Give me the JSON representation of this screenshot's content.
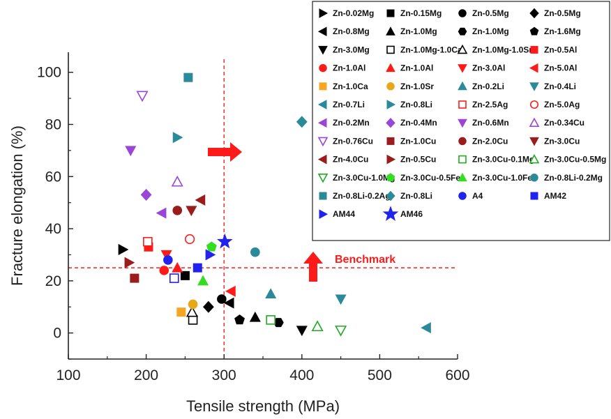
{
  "chart_data": {
    "type": "scatter",
    "title": "",
    "xlabel": "Tensile strength (MPa)",
    "ylabel": "Fracture elongation (%)",
    "xlim": [
      100,
      600
    ],
    "ylim": [
      -10,
      105
    ],
    "xticks": [
      100,
      200,
      300,
      400,
      500,
      600
    ],
    "yticks": [
      0,
      20,
      40,
      60,
      80,
      100
    ],
    "grid": false,
    "legend_position": "top-right",
    "benchmark": {
      "x": 300,
      "y": 25,
      "label": "Benchmark",
      "color": "#ff1a1a"
    },
    "series": [
      {
        "name": "Zn-0.02Mg",
        "marker": "tri-right",
        "color": "#000000",
        "fill": true,
        "points": [
          [
            170,
            32
          ]
        ]
      },
      {
        "name": "Zn-0.15Mg",
        "marker": "square",
        "color": "#000000",
        "fill": true,
        "points": [
          [
            250,
            22
          ]
        ]
      },
      {
        "name": "Zn-0.5Mg",
        "marker": "circle",
        "color": "#000000",
        "fill": true,
        "points": [
          [
            297,
            13
          ]
        ]
      },
      {
        "name": "Zn-0.5Mg",
        "marker": "diamond",
        "color": "#000000",
        "fill": true,
        "points": [
          [
            280,
            10
          ]
        ]
      },
      {
        "name": "Zn-0.8Mg",
        "marker": "tri-left",
        "color": "#000000",
        "fill": true,
        "points": [
          [
            307,
            11.5
          ]
        ]
      },
      {
        "name": "Zn-1.0Mg",
        "marker": "tri-up",
        "color": "#000000",
        "fill": true,
        "points": [
          [
            340,
            6
          ]
        ]
      },
      {
        "name": "Zn-1.0Mg",
        "marker": "hexagon",
        "color": "#000000",
        "fill": true,
        "points": [
          [
            370,
            4
          ]
        ]
      },
      {
        "name": "Zn-1.6Mg",
        "marker": "pentagon",
        "color": "#000000",
        "fill": true,
        "points": [
          [
            320,
            5
          ]
        ]
      },
      {
        "name": "Zn-3.0Mg",
        "marker": "tri-down",
        "color": "#000000",
        "fill": true,
        "points": [
          [
            400,
            1
          ]
        ]
      },
      {
        "name": "Zn-1.0Mg-1.0Ca",
        "marker": "square",
        "color": "#000000",
        "fill": false,
        "points": [
          [
            260,
            5
          ]
        ]
      },
      {
        "name": "Zn-1.0Mg-1.0Sr",
        "marker": "tri-up",
        "color": "#000000",
        "fill": false,
        "points": [
          [
            259,
            8
          ]
        ]
      },
      {
        "name": "Zn-0.5Al",
        "marker": "square",
        "color": "#ff1a1a",
        "fill": true,
        "points": [
          [
            203,
            33
          ]
        ]
      },
      {
        "name": "Zn-1.0Al",
        "marker": "circle",
        "color": "#ff1a1a",
        "fill": true,
        "points": [
          [
            223,
            24
          ]
        ]
      },
      {
        "name": "Zn-1.0Al",
        "marker": "tri-up",
        "color": "#ff1a1a",
        "fill": true,
        "points": [
          [
            240,
            25
          ]
        ]
      },
      {
        "name": "Zn-3.0Al",
        "marker": "tri-down",
        "color": "#ff1a1a",
        "fill": true,
        "points": [
          [
            226,
            30
          ]
        ]
      },
      {
        "name": "Zn-5.0Al",
        "marker": "tri-left",
        "color": "#ff1a1a",
        "fill": true,
        "points": [
          [
            309,
            16
          ]
        ]
      },
      {
        "name": "Zn-1.0Ca",
        "marker": "square",
        "color": "#f5a623",
        "fill": true,
        "points": [
          [
            245,
            8
          ]
        ]
      },
      {
        "name": "Zn-1.0Sr",
        "marker": "circle",
        "color": "#e6a817",
        "fill": true,
        "points": [
          [
            260,
            11
          ]
        ]
      },
      {
        "name": "Zn-0.2Li",
        "marker": "tri-up",
        "color": "#2a8a9a",
        "fill": true,
        "points": [
          [
            360,
            15
          ]
        ]
      },
      {
        "name": "Zn-0.4Li",
        "marker": "tri-down",
        "color": "#2a8a9a",
        "fill": true,
        "points": [
          [
            450,
            13
          ]
        ]
      },
      {
        "name": "Zn-0.7Li",
        "marker": "tri-left",
        "color": "#2a8a9a",
        "fill": true,
        "points": [
          [
            560,
            2
          ]
        ]
      },
      {
        "name": "Zn-0.8Li",
        "marker": "tri-right",
        "color": "#2a8a9a",
        "fill": true,
        "points": [
          [
            240,
            75
          ]
        ]
      },
      {
        "name": "Zn-2.5Ag",
        "marker": "square",
        "color": "#ff1a1a",
        "fill": false,
        "points": [
          [
            202,
            35
          ]
        ]
      },
      {
        "name": "Zn-5.0Ag",
        "marker": "circle",
        "color": "#ff1a1a",
        "fill": false,
        "points": [
          [
            256,
            36
          ]
        ]
      },
      {
        "name": "Zn-0.2Mn",
        "marker": "tri-left",
        "color": "#9b45d6",
        "fill": true,
        "points": [
          [
            220,
            46
          ]
        ]
      },
      {
        "name": "Zn-0.4Mn",
        "marker": "diamond",
        "color": "#9b45d6",
        "fill": true,
        "points": [
          [
            200,
            53
          ]
        ]
      },
      {
        "name": "Zn-0.6Mn",
        "marker": "tri-down",
        "color": "#9b45d6",
        "fill": true,
        "points": [
          [
            180,
            70
          ]
        ]
      },
      {
        "name": "Zn-0.34Cu",
        "marker": "tri-up",
        "color": "#9b45d6",
        "fill": false,
        "points": [
          [
            240,
            58
          ]
        ]
      },
      {
        "name": "Zn-0.76Cu",
        "marker": "tri-down",
        "color": "#9b45d6",
        "fill": false,
        "points": [
          [
            195,
            91
          ]
        ]
      },
      {
        "name": "Zn-1.0Cu",
        "marker": "square",
        "color": "#9b1c1c",
        "fill": true,
        "points": [
          [
            185,
            21
          ]
        ]
      },
      {
        "name": "Zn-2.0Cu",
        "marker": "circle",
        "color": "#9b1c1c",
        "fill": true,
        "points": [
          [
            240,
            47
          ]
        ]
      },
      {
        "name": "Zn-3.0Cu",
        "marker": "tri-down",
        "color": "#9b1c1c",
        "fill": true,
        "points": [
          [
            258,
            47
          ]
        ]
      },
      {
        "name": "Zn-4.0Cu",
        "marker": "tri-left",
        "color": "#9b1c1c",
        "fill": true,
        "points": [
          [
            270,
            51
          ]
        ]
      },
      {
        "name": "Zn-0.5Cu",
        "marker": "tri-right",
        "color": "#9b1c1c",
        "fill": true,
        "points": [
          [
            178,
            27
          ]
        ]
      },
      {
        "name": "Zn-3.0Cu-0.1Mg",
        "marker": "square",
        "color": "#22aa22",
        "fill": false,
        "points": [
          [
            360,
            5
          ]
        ]
      },
      {
        "name": "Zn-3.0Cu-0.5Mg",
        "marker": "tri-up",
        "color": "#22aa22",
        "fill": false,
        "points": [
          [
            420,
            2.5
          ]
        ]
      },
      {
        "name": "Zn-3.0Cu-1.0Mg",
        "marker": "tri-down",
        "color": "#22aa22",
        "fill": false,
        "points": [
          [
            450,
            1
          ]
        ]
      },
      {
        "name": "Zn-3.0Cu-0.5Fe",
        "marker": "pentagon",
        "color": "#33dd22",
        "fill": true,
        "points": [
          [
            284,
            33
          ]
        ]
      },
      {
        "name": "Zn-3.0Cu-1.0Fe",
        "marker": "tri-up",
        "color": "#33dd22",
        "fill": true,
        "points": [
          [
            273,
            20
          ]
        ]
      },
      {
        "name": "Zn-0.8Li-0.2Mg",
        "marker": "circle",
        "color": "#2a8a9a",
        "fill": true,
        "points": [
          [
            340,
            31
          ]
        ]
      },
      {
        "name": "Zn-0.8Li-0.2Ag",
        "marker": "square",
        "color": "#2a8a9a",
        "fill": true,
        "points": [
          [
            254,
            98
          ]
        ]
      },
      {
        "name": "Zn-0.8Li",
        "marker": "diamond",
        "color": "#2a8a9a",
        "fill": true,
        "points": [
          [
            400,
            81
          ]
        ]
      },
      {
        "name": "A4",
        "marker": "circle",
        "color": "#2222ee",
        "fill": true,
        "points": [
          [
            228,
            28
          ]
        ]
      },
      {
        "name": "AM42",
        "marker": "square",
        "color": "#2222ee",
        "fill": true,
        "points": [
          [
            266,
            25
          ]
        ]
      },
      {
        "name": "AM44",
        "marker": "tri-right",
        "color": "#2222ee",
        "fill": true,
        "points": [
          [
            282,
            30
          ]
        ]
      },
      {
        "name": "AM46",
        "marker": "star",
        "color": "#2222ee",
        "fill": true,
        "points": [
          [
            301,
            35
          ]
        ]
      }
    ],
    "extra_points": [
      {
        "marker": "square",
        "color": "#2222ee",
        "fill": false,
        "points": [
          [
            236,
            21
          ]
        ]
      }
    ]
  }
}
